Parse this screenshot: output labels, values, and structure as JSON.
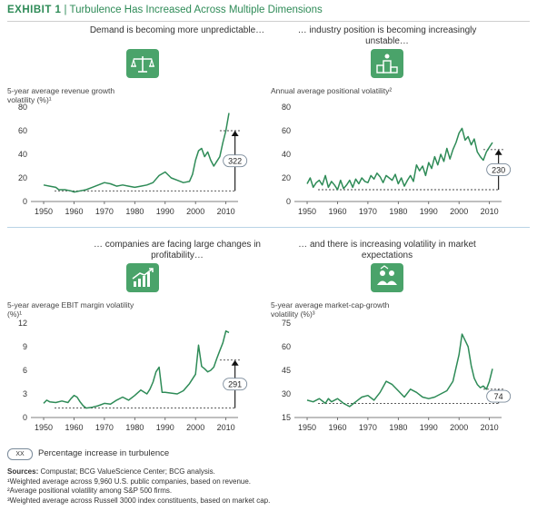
{
  "exhibit": {
    "number": "EXHIBIT 1",
    "title": "Turbulence Has Increased Across Multiple Dimensions"
  },
  "colors": {
    "line": "#2e8b57",
    "rule": "#b9d3e6",
    "icon": "#4aa36a",
    "text": "#333333"
  },
  "panels": [
    {
      "subtitle": "Demand is becoming more unpredictable…",
      "icon": "scale-icon",
      "ylabel": "5-year average revenue growth volatility (%)¹"
    },
    {
      "subtitle": "… industry position is becoming increasingly unstable…",
      "icon": "podium-icon",
      "ylabel": "Annual average positional volatility²"
    },
    {
      "subtitle": "… companies are facing large changes in profitability…",
      "icon": "growth-chart-icon",
      "ylabel": "5-year average EBIT margin volatility (%)¹"
    },
    {
      "subtitle": "… and there is increasing volatility in market expectations",
      "icon": "people-icon",
      "ylabel": "5-year average market-cap-growth volatility (%)³"
    }
  ],
  "legend": {
    "box": "XX",
    "text": "Percentage increase in turbulence"
  },
  "sources": {
    "label": "Sources:",
    "text": "Compustat; BCG ValueScience Center; BCG analysis.",
    "notes": [
      "¹Weighted average across 9,960 U.S. public companies, based on revenue.",
      "²Average positional volatility among S&P 500 firms.",
      "³Weighted average across Russell 3000 index constituents, based on market cap."
    ]
  },
  "chart_data": [
    {
      "type": "line",
      "title": "Demand is becoming more unpredictable…",
      "ylabel": "5-year average revenue growth volatility (%)¹",
      "xlim": [
        1947,
        2014
      ],
      "ylim": [
        0,
        80
      ],
      "xticks": [
        1950,
        1960,
        1970,
        1980,
        1990,
        2000,
        2010
      ],
      "yticks": [
        0,
        20,
        40,
        60,
        80
      ],
      "x": [
        1950,
        1952,
        1954,
        1955,
        1957,
        1959,
        1960,
        1962,
        1964,
        1966,
        1968,
        1970,
        1972,
        1974,
        1976,
        1978,
        1980,
        1982,
        1984,
        1986,
        1987,
        1988,
        1990,
        1992,
        1994,
        1996,
        1998,
        1999,
        2000,
        2001,
        2002,
        2003,
        2004,
        2005,
        2006,
        2007,
        2008,
        2009,
        2010,
        2011
      ],
      "y": [
        14,
        13,
        12,
        10,
        10,
        9,
        8,
        9,
        10,
        12,
        14,
        16,
        15,
        13,
        14,
        13,
        12,
        13,
        14,
        16,
        19,
        22,
        25,
        20,
        18,
        16,
        17,
        23,
        35,
        43,
        45,
        38,
        42,
        35,
        30,
        34,
        38,
        50,
        60,
        75
      ],
      "baseline": 9,
      "annotation": {
        "label": "322",
        "x": 2013,
        "from": 9,
        "to": 60
      }
    },
    {
      "type": "line",
      "title": "… industry position is becoming increasingly unstable…",
      "ylabel": "Annual average positional volatility²",
      "xlim": [
        1947,
        2014
      ],
      "ylim": [
        0,
        80
      ],
      "xticks": [
        1950,
        1960,
        1970,
        1980,
        1990,
        2000,
        2010
      ],
      "yticks": [
        0,
        20,
        40,
        60,
        80
      ],
      "x": [
        1950,
        1951,
        1952,
        1953,
        1954,
        1955,
        1956,
        1957,
        1958,
        1959,
        1960,
        1961,
        1962,
        1963,
        1964,
        1965,
        1966,
        1967,
        1968,
        1969,
        1970,
        1971,
        1972,
        1973,
        1974,
        1975,
        1976,
        1977,
        1978,
        1979,
        1980,
        1981,
        1982,
        1983,
        1984,
        1985,
        1986,
        1987,
        1988,
        1989,
        1990,
        1991,
        1992,
        1993,
        1994,
        1995,
        1996,
        1997,
        1998,
        1999,
        2000,
        2001,
        2002,
        2003,
        2004,
        2005,
        2006,
        2007,
        2008,
        2009,
        2010,
        2011
      ],
      "y": [
        15,
        20,
        12,
        16,
        18,
        14,
        22,
        12,
        17,
        14,
        10,
        18,
        11,
        14,
        18,
        12,
        19,
        15,
        20,
        17,
        16,
        22,
        19,
        24,
        21,
        16,
        22,
        20,
        18,
        23,
        15,
        20,
        13,
        18,
        22,
        17,
        31,
        26,
        30,
        22,
        33,
        28,
        38,
        31,
        40,
        34,
        45,
        36,
        44,
        50,
        58,
        62,
        52,
        55,
        48,
        53,
        42,
        38,
        35,
        42,
        46,
        50
      ],
      "baseline": 10,
      "annotation": {
        "label": "230",
        "x": 2013,
        "from": 10,
        "to": 44
      }
    },
    {
      "type": "line",
      "title": "… companies are facing large changes in profitability…",
      "ylabel": "5-year average EBIT margin volatility (%)¹",
      "xlim": [
        1947,
        2014
      ],
      "ylim": [
        0,
        12
      ],
      "xticks": [
        1950,
        1960,
        1970,
        1980,
        1990,
        2000,
        2010
      ],
      "yticks": [
        0,
        3,
        6,
        9,
        12
      ],
      "x": [
        1950,
        1951,
        1952,
        1954,
        1956,
        1958,
        1959,
        1960,
        1961,
        1962,
        1963,
        1964,
        1966,
        1968,
        1970,
        1972,
        1974,
        1976,
        1978,
        1980,
        1982,
        1984,
        1985,
        1986,
        1987,
        1988,
        1989,
        1990,
        1992,
        1994,
        1996,
        1998,
        2000,
        2001,
        2002,
        2003,
        2004,
        2005,
        2006,
        2007,
        2008,
        2009,
        2010,
        2011
      ],
      "y": [
        1.8,
        2.2,
        2.0,
        1.9,
        2.1,
        1.9,
        2.4,
        2.8,
        2.6,
        2.0,
        1.5,
        1.2,
        1.3,
        1.5,
        1.8,
        1.7,
        2.2,
        2.6,
        2.2,
        2.8,
        3.5,
        3.0,
        3.6,
        4.5,
        5.8,
        6.4,
        3.2,
        3.2,
        3.1,
        3.0,
        3.4,
        4.3,
        5.5,
        9.2,
        6.5,
        6.2,
        5.8,
        6.0,
        6.4,
        7.5,
        8.5,
        9.5,
        11.0,
        10.8
      ],
      "baseline": 1.2,
      "annotation": {
        "label": "291",
        "x": 2013,
        "from": 1.2,
        "to": 7.3
      }
    },
    {
      "type": "line",
      "title": "… and there is increasing volatility in market expectations",
      "ylabel": "5-year average market-cap-growth volatility (%)³",
      "xlim": [
        1947,
        2014
      ],
      "ylim": [
        15,
        75
      ],
      "xticks": [
        1950,
        1960,
        1970,
        1980,
        1990,
        2000,
        2010
      ],
      "yticks": [
        15,
        30,
        45,
        60,
        75
      ],
      "x": [
        1950,
        1952,
        1954,
        1956,
        1957,
        1958,
        1960,
        1962,
        1964,
        1966,
        1968,
        1970,
        1972,
        1974,
        1976,
        1978,
        1980,
        1982,
        1984,
        1986,
        1988,
        1990,
        1992,
        1994,
        1996,
        1998,
        2000,
        2001,
        2002,
        2003,
        2004,
        2005,
        2006,
        2007,
        2008,
        2009,
        2010,
        2011
      ],
      "y": [
        26,
        25,
        27,
        24,
        27,
        25,
        27,
        24,
        22,
        25,
        28,
        29,
        26,
        31,
        38,
        36,
        32,
        28,
        33,
        31,
        28,
        27,
        28,
        30,
        32,
        38,
        55,
        68,
        64,
        60,
        48,
        40,
        36,
        34,
        35,
        33,
        38,
        46
      ],
      "baseline": 24,
      "annotation": {
        "label": "74",
        "x": 2013,
        "from": 24,
        "to": 33
      }
    }
  ]
}
